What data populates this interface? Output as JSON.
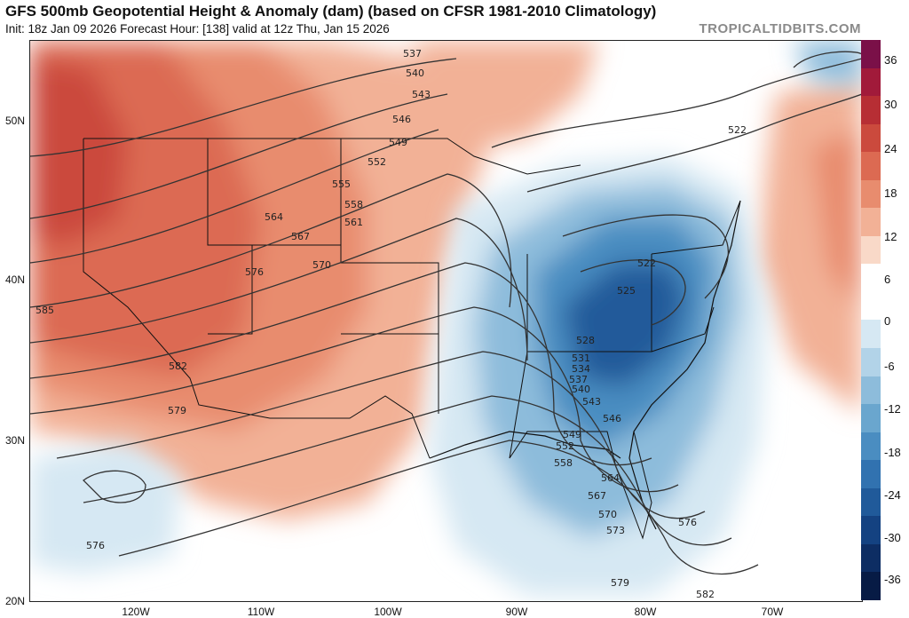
{
  "header": {
    "title": "GFS 500mb Geopotential Height & Anomaly (dam) (based on CFSR 1981-2010 Climatology)",
    "subtitle": "Init: 18z Jan 09 2026   Forecast Hour: [138]   valid at 12z Thu, Jan 15 2026",
    "source": "TROPICALTIDBITS.COM"
  },
  "axes": {
    "latitude_labels": [
      "50N",
      "40N",
      "30N",
      "20N"
    ],
    "longitude_labels": [
      "120W",
      "110W",
      "100W",
      "90W",
      "80W",
      "70W"
    ]
  },
  "colorbar": {
    "labels": [
      "36",
      "30",
      "24",
      "18",
      "12",
      "6",
      "0",
      "-6",
      "-12",
      "-18",
      "-24",
      "-30",
      "-36"
    ],
    "colors": [
      "#7a1048",
      "#a11a3a",
      "#b72e34",
      "#cb4a3d",
      "#dc6a52",
      "#e88c6e",
      "#f2b196",
      "#f9d9c8",
      "#ffffff",
      "#ffffff",
      "#d6e8f3",
      "#b2d3e8",
      "#8dbcdb",
      "#6aa6ce",
      "#4a8dc1",
      "#3172b0",
      "#205a9a",
      "#144281",
      "#0d2d63",
      "#071b45"
    ]
  },
  "contours": {
    "height_labels": [
      "537",
      "540",
      "543",
      "546",
      "549",
      "552",
      "555",
      "558",
      "561",
      "564",
      "567",
      "570",
      "576",
      "585",
      "582",
      "579",
      "576",
      "522",
      "522",
      "525",
      "528",
      "531",
      "534",
      "537",
      "540",
      "543",
      "546",
      "549",
      "552",
      "558",
      "564",
      "567",
      "570",
      "573",
      "576",
      "579",
      "582"
    ]
  }
}
